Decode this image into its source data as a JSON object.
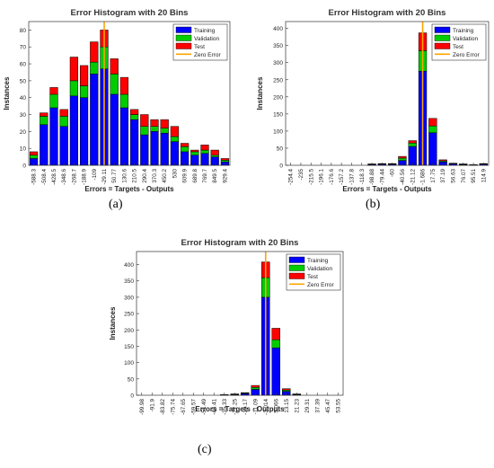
{
  "chart_data": [
    {
      "type": "bar",
      "title": "Error Histogram with 20 Bins",
      "xlabel": "Errors = Targets - Outputs",
      "ylabel": "Instances",
      "ylim": [
        0,
        85
      ],
      "yticks": [
        0,
        10,
        20,
        30,
        40,
        50,
        60,
        70,
        80
      ],
      "categories": [
        "-588.3",
        "-508.4",
        "-428.5",
        "-348.6",
        "-268.7",
        "-188.9",
        "-109",
        "-29.11",
        "50.77",
        "130.6",
        "210.5",
        "290.4",
        "370.3",
        "450.2",
        "530",
        "609.9",
        "689.8",
        "769.7",
        "849.5",
        "929.4"
      ],
      "zero_error_category": "-29.11",
      "series": [
        {
          "name": "Training",
          "color": "#0000ff",
          "values": [
            4,
            24,
            34,
            23,
            41,
            40,
            54,
            57,
            42,
            34,
            27,
            18,
            20,
            19,
            14,
            8,
            6,
            7,
            5,
            2
          ]
        },
        {
          "name": "Validation",
          "color": "#00cc00",
          "values": [
            2,
            5,
            8,
            6,
            9,
            7,
            7,
            13,
            12,
            8,
            3,
            5,
            3,
            3,
            3,
            3,
            2,
            2,
            1,
            1
          ]
        },
        {
          "name": "Test",
          "color": "#ff0000",
          "values": [
            2,
            2,
            4,
            4,
            14,
            12,
            12,
            10,
            9,
            10,
            3,
            7,
            4,
            5,
            6,
            2,
            1,
            3,
            3,
            1
          ]
        }
      ],
      "legend": [
        "Training",
        "Validation",
        "Test",
        "Zero Error"
      ],
      "legend_position": "top-right",
      "zero_error_color": "#ffa500",
      "caption": "(a)"
    },
    {
      "type": "bar",
      "title": "Error Histogram with 20 Bins",
      "xlabel": "Errors = Targets - Outputs",
      "ylabel": "Instances",
      "ylim": [
        0,
        420
      ],
      "yticks": [
        0,
        50,
        100,
        150,
        200,
        250,
        300,
        350,
        400
      ],
      "categories": [
        "-254.4",
        "-235",
        "-215.5",
        "-196.1",
        "-176.6",
        "-157.2",
        "-137.8",
        "-118.3",
        "-98.88",
        "-79.44",
        "-60",
        "-40.56",
        "-21.12",
        "-1.686",
        "17.75",
        "37.19",
        "56.63",
        "76.07",
        "95.51",
        "114.9"
      ],
      "zero_error_category": "-1.686",
      "series": [
        {
          "name": "Training",
          "color": "#0000ff",
          "values": [
            0,
            0,
            0,
            0,
            0,
            0,
            0,
            0,
            2,
            3,
            3,
            14,
            55,
            275,
            95,
            10,
            4,
            2,
            1,
            3
          ]
        },
        {
          "name": "Validation",
          "color": "#00cc00",
          "values": [
            0,
            0,
            0,
            0,
            0,
            0,
            0,
            0,
            1,
            1,
            1,
            7,
            10,
            60,
            20,
            3,
            1,
            1,
            0,
            1
          ]
        },
        {
          "name": "Test",
          "color": "#ff0000",
          "values": [
            0,
            0,
            0,
            0,
            0,
            0,
            0,
            0,
            1,
            1,
            1,
            5,
            7,
            52,
            22,
            3,
            1,
            1,
            1,
            1
          ]
        }
      ],
      "legend": [
        "Training",
        "Validation",
        "Test",
        "Zero Error"
      ],
      "legend_position": "top-right",
      "zero_error_color": "#ffa500",
      "caption": "(b)"
    },
    {
      "type": "bar",
      "title": "Error Histogram with 20 Bins",
      "xlabel": "Errors = Targets - Outputs",
      "ylabel": "Instances",
      "ylim": [
        0,
        440
      ],
      "yticks": [
        0,
        50,
        100,
        150,
        200,
        250,
        300,
        350,
        400
      ],
      "categories": [
        "-99.98",
        "-91.9",
        "-83.82",
        "-75.74",
        "-67.65",
        "-59.57",
        "-51.49",
        "-43.41",
        "-35.33",
        "-27.25",
        "-19.17",
        "-11.09",
        "-3.014",
        "5.066",
        "13.15",
        "21.23",
        "29.31",
        "37.39",
        "45.47",
        "53.55"
      ],
      "zero_error_category": "-3.014",
      "series": [
        {
          "name": "Training",
          "color": "#0000ff",
          "values": [
            0,
            0,
            0,
            0,
            0,
            0,
            0,
            0,
            1,
            2,
            5,
            18,
            300,
            145,
            12,
            2,
            0,
            0,
            0,
            0
          ]
        },
        {
          "name": "Validation",
          "color": "#00cc00",
          "values": [
            0,
            0,
            0,
            0,
            0,
            0,
            0,
            0,
            1,
            1,
            2,
            6,
            60,
            25,
            4,
            1,
            0,
            0,
            0,
            0
          ]
        },
        {
          "name": "Test",
          "color": "#ff0000",
          "values": [
            0,
            0,
            0,
            0,
            0,
            0,
            0,
            0,
            0,
            1,
            1,
            6,
            48,
            35,
            4,
            1,
            0,
            0,
            0,
            0
          ]
        }
      ],
      "legend": [
        "Training",
        "Validation",
        "Test",
        "Zero Error"
      ],
      "legend_position": "top-right",
      "zero_error_color": "#ffa500",
      "caption": "(c)"
    }
  ]
}
